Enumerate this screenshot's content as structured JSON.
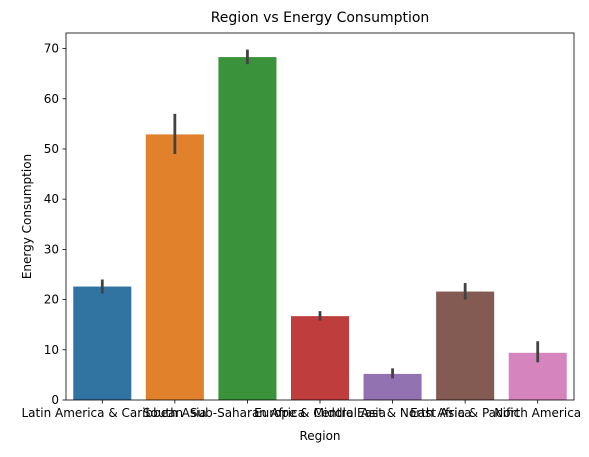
{
  "chart_data": {
    "type": "bar",
    "title": "Region vs Energy Consumption",
    "xlabel": "Region",
    "ylabel": "Energy Consumption",
    "categories": [
      "Latin America & Caribbean",
      "South Asia",
      "Sub-Saharan Africa",
      "Europe & Central Asia",
      "Middle East & North Africa",
      "East Asia & Pacific",
      "North America"
    ],
    "values": [
      22.6,
      52.9,
      68.3,
      16.7,
      5.2,
      21.6,
      9.4
    ],
    "error_low": [
      21.2,
      49.0,
      66.9,
      15.8,
      4.3,
      20.0,
      7.5
    ],
    "error_high": [
      24.0,
      57.0,
      69.8,
      17.7,
      6.3,
      23.3,
      11.7
    ],
    "colors": [
      "#3274a1",
      "#e1812c",
      "#3a923a",
      "#c03d3e",
      "#9372b2",
      "#845b53",
      "#d684bd"
    ],
    "ylim": [
      0,
      73.1
    ],
    "yticks": [
      0,
      10,
      20,
      30,
      40,
      50,
      60,
      70
    ],
    "grid": false,
    "legend": "none"
  }
}
